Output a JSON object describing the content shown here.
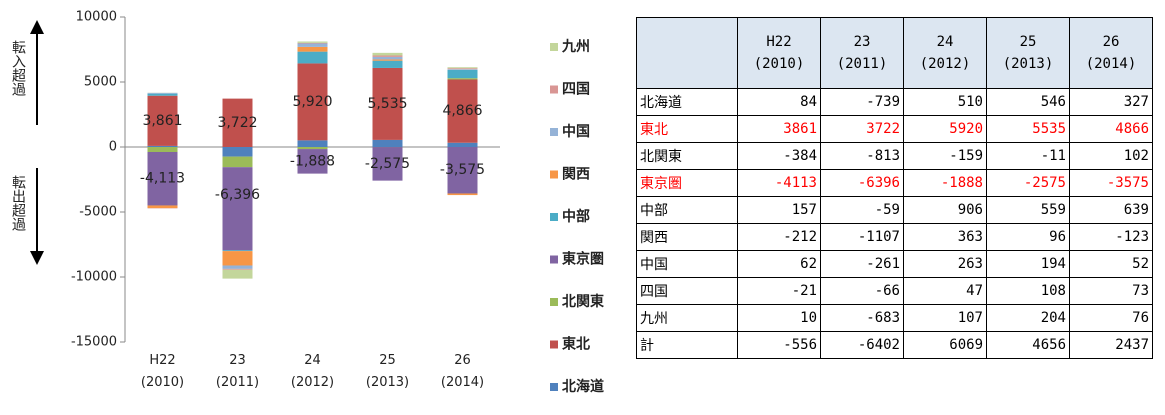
{
  "chart_data": {
    "type": "bar",
    "stacked": true,
    "categories": [
      "H22\n(2010)",
      "23\n(2011)",
      "24\n(2012)",
      "25\n(2013)",
      "26\n(2014)"
    ],
    "series": [
      {
        "name": "北海道",
        "color": "#4f81bd",
        "values": [
          84,
          -739,
          510,
          546,
          327
        ]
      },
      {
        "name": "東北",
        "color": "#c0504d",
        "values": [
          3861,
          3722,
          5920,
          5535,
          4866
        ],
        "value_labels": [
          "3,861",
          "3,722",
          "5,920",
          "5,535",
          "4,866"
        ]
      },
      {
        "name": "北関東",
        "color": "#9bbb59",
        "values": [
          -384,
          -813,
          -159,
          -11,
          102
        ]
      },
      {
        "name": "東京圏",
        "color": "#8064a2",
        "values": [
          -4113,
          -6396,
          -1888,
          -2575,
          -3575
        ],
        "value_labels": [
          "-4,113",
          "-6,396",
          "-1,888",
          "-2,575",
          "-3,575"
        ]
      },
      {
        "name": "中部",
        "color": "#4bacc6",
        "values": [
          157,
          -59,
          906,
          559,
          639
        ]
      },
      {
        "name": "関西",
        "color": "#f79646",
        "values": [
          -212,
          -1107,
          363,
          96,
          -123
        ]
      },
      {
        "name": "中国",
        "color": "#95b3d7",
        "values": [
          62,
          -261,
          263,
          194,
          52
        ]
      },
      {
        "name": "四国",
        "color": "#d99694",
        "values": [
          -21,
          -66,
          47,
          108,
          73
        ]
      },
      {
        "name": "九州",
        "color": "#c3d69b",
        "values": [
          10,
          -683,
          107,
          204,
          76
        ]
      }
    ],
    "ylim": [
      -15000,
      10000
    ],
    "yticks": [
      10000,
      5000,
      0,
      -5000,
      -10000,
      -15000
    ],
    "grid": false,
    "legend": "right",
    "annotations": [
      "転入超過",
      "転出超過"
    ]
  },
  "table": {
    "total_label": "計",
    "totals": [
      -556,
      -6402,
      6069,
      4656,
      2437
    ],
    "highlight_rows": [
      1,
      3
    ],
    "highlight_color": "#ff0000",
    "header_color": "#dce6f1"
  }
}
